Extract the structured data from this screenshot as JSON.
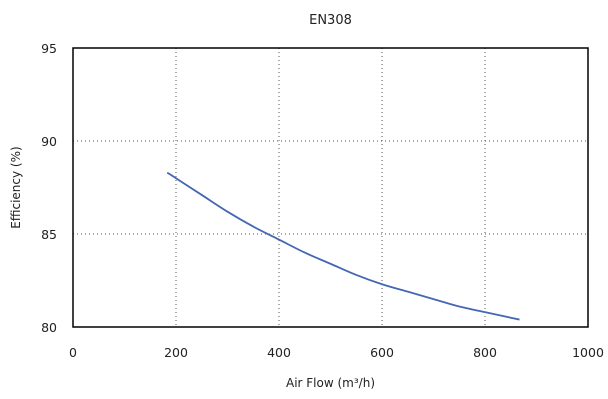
{
  "chart_data": {
    "type": "line",
    "title": "EN308",
    "xlabel": "Air Flow (m³/h)",
    "ylabel": "Efficiency (%)",
    "xlim": [
      0,
      1000
    ],
    "ylim": [
      80,
      95
    ],
    "xticks": [
      0,
      200,
      400,
      600,
      800,
      1000
    ],
    "yticks": [
      80,
      85,
      90,
      95
    ],
    "grid": true,
    "grid_style": "dotted",
    "series": [
      {
        "color": "#4466b5",
        "x": [
          183,
          200,
          250,
          300,
          350,
          400,
          450,
          500,
          550,
          600,
          650,
          700,
          750,
          800,
          850,
          867
        ],
        "y": [
          88.3,
          88.0,
          87.1,
          86.2,
          85.4,
          84.7,
          84.0,
          83.4,
          82.8,
          82.3,
          81.9,
          81.5,
          81.1,
          80.8,
          80.5,
          80.4
        ]
      }
    ]
  }
}
